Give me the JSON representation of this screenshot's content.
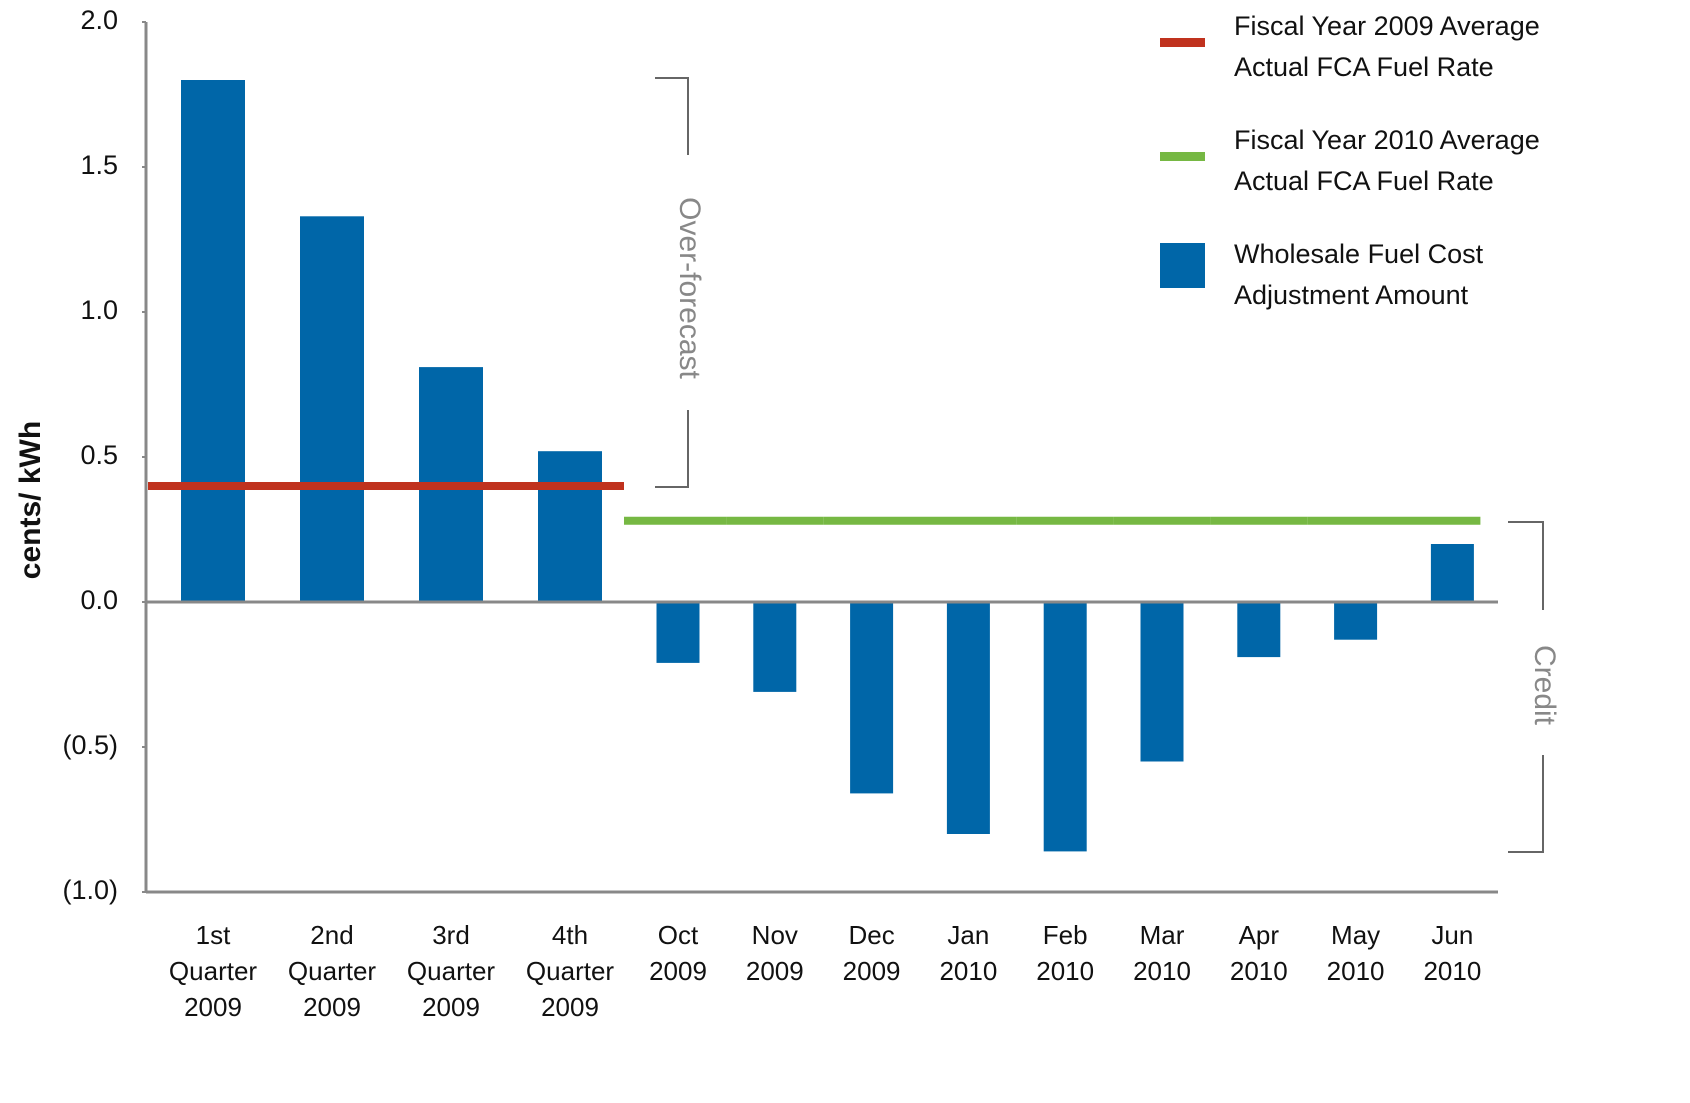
{
  "chart_data": {
    "type": "bar",
    "y_label": "cents/ kWh",
    "categories": [
      "1st Quarter 2009",
      "2nd Quarter 2009",
      "3rd Quarter 2009",
      "4th Quarter 2009",
      "Oct 2009",
      "Nov 2009",
      "Dec 2009",
      "Jan 2010",
      "Feb 2010",
      "Mar 2010",
      "Apr 2010",
      "May 2010",
      "Jun 2010"
    ],
    "series": [
      {
        "name": "Fiscal Year 2009 Average Actual FCA Fuel Rate",
        "type": "line",
        "color": "#c0321e",
        "values": [
          0.4,
          0.4,
          0.4,
          0.4,
          null,
          null,
          null,
          null,
          null,
          null,
          null,
          null,
          null
        ]
      },
      {
        "name": "Fiscal Year 2010 Average Actual FCA Fuel Rate",
        "type": "line",
        "color": "#76b843",
        "values": [
          null,
          null,
          null,
          null,
          0.28,
          0.28,
          0.28,
          0.28,
          0.28,
          0.28,
          0.28,
          0.28,
          0.28
        ]
      },
      {
        "name": "Wholesale Fuel Cost Adjustment Amount",
        "type": "bar",
        "color": "#0066a8",
        "values": [
          1.8,
          1.33,
          0.81,
          0.52,
          -0.21,
          -0.31,
          -0.66,
          -0.8,
          -0.86,
          -0.55,
          -0.19,
          -0.13,
          0.2
        ]
      }
    ],
    "annotations": [
      "Over-forecast",
      "Credit"
    ],
    "ylim": [
      -1,
      2
    ],
    "yticks": [
      {
        "value": -1,
        "label": "(1.0)"
      },
      {
        "value": -0.5,
        "label": "(0.5)"
      },
      {
        "value": 0,
        "label": "0.0"
      },
      {
        "value": 0.5,
        "label": "0.5"
      },
      {
        "value": 1,
        "label": "1.0"
      },
      {
        "value": 1.5,
        "label": "1.5"
      },
      {
        "value": 2,
        "label": "2.0"
      }
    ],
    "grid": false
  }
}
